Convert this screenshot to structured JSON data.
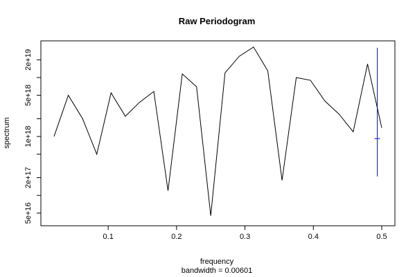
{
  "chart_data": {
    "type": "line",
    "title": "Raw Periodogram",
    "xlabel": "frequency",
    "ylabel": "spectrum",
    "subtitle": "bandwidth = 0.00601",
    "y_scale": "log",
    "xlim": [
      0.0208,
      0.5
    ],
    "ylim": [
      4e+16,
      3.2e+19
    ],
    "x_ticks": [
      {
        "value": 0.1,
        "label": "0.1"
      },
      {
        "value": 0.2,
        "label": "0.2"
      },
      {
        "value": 0.3,
        "label": "0.3"
      },
      {
        "value": 0.4,
        "label": "0.4"
      },
      {
        "value": 0.5,
        "label": "0.5"
      }
    ],
    "y_ticks_major": [
      {
        "value": 5e+16,
        "label": "5e+16"
      },
      {
        "value": 2e+17,
        "label": "2e+17"
      },
      {
        "value": 1e+18,
        "label": "1e+18"
      },
      {
        "value": 5e+18,
        "label": "5e+18"
      },
      {
        "value": 2e+19,
        "label": "2e+19"
      }
    ],
    "y_ticks_minor": [
      1e+17,
      5e+17,
      2e+18,
      1e+19
    ],
    "series": [
      {
        "color": "#000000",
        "x": [
          0.0208,
          0.0417,
          0.0625,
          0.0833,
          0.1042,
          0.125,
          0.1458,
          0.1667,
          0.1875,
          0.2083,
          0.2292,
          0.25,
          0.2708,
          0.2917,
          0.3125,
          0.3333,
          0.3542,
          0.375,
          0.3958,
          0.4167,
          0.4375,
          0.4583,
          0.4792,
          0.5
        ],
        "y": [
          1e+18,
          5e+18,
          2e+18,
          5e+17,
          5.5e+18,
          2.2e+18,
          3.8e+18,
          5.8e+18,
          1.2e+17,
          1.15e+19,
          7e+18,
          4.5e+16,
          1.2e+19,
          2.3e+19,
          3.3e+19,
          1.3e+19,
          1.8e+17,
          1e+19,
          9e+18,
          4e+18,
          2.4e+18,
          1.2e+18,
          1.7e+19,
          1.4e+18
        ]
      }
    ],
    "confidence_bar": {
      "color": "#0000ff",
      "x": 0.4935,
      "center": 9.2e+17,
      "lower": 2.1e+17,
      "upper": 3.2e+19
    }
  }
}
